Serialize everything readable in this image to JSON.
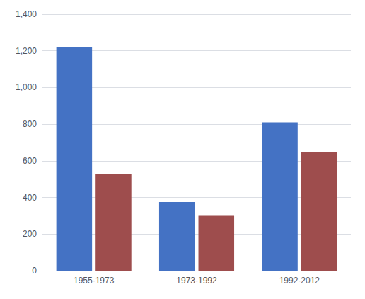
{
  "chart_data": {
    "type": "bar",
    "categories": [
      "1955-1973",
      "1973-1992",
      "1992-2012"
    ],
    "series": [
      {
        "color": "#4472C4",
        "values": [
          1220,
          375,
          810
        ]
      },
      {
        "color": "#9E4D4D",
        "values": [
          530,
          300,
          650
        ]
      }
    ],
    "ylim": [
      0,
      1400
    ],
    "yticks": [
      0,
      200,
      400,
      600,
      800,
      1000,
      1200,
      1400
    ],
    "grid": true
  }
}
